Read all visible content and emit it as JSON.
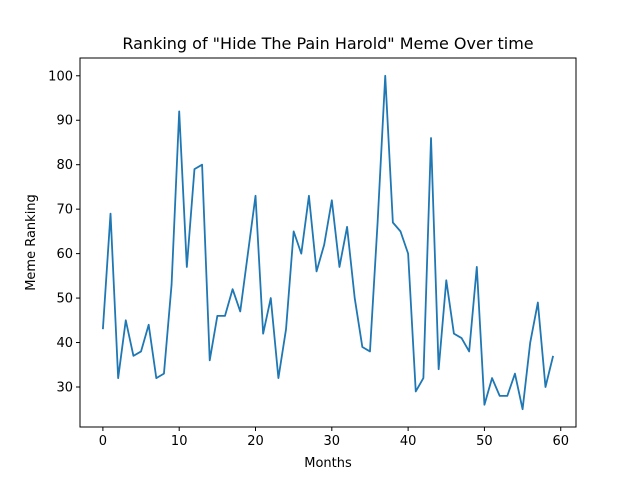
{
  "chart_data": {
    "type": "line",
    "title": "Ranking of \"Hide The Pain Harold\" Meme Over time",
    "xlabel": "Months",
    "ylabel": "Meme Ranking",
    "xlim": [
      -3,
      62
    ],
    "ylim": [
      21,
      104
    ],
    "xticks": [
      0,
      10,
      20,
      30,
      40,
      50,
      60
    ],
    "yticks": [
      30,
      40,
      50,
      60,
      70,
      80,
      90,
      100
    ],
    "grid": false,
    "line_color": "#1f77b4",
    "series": [
      {
        "x": [
          0,
          1,
          2,
          3,
          4,
          5,
          6,
          7,
          8,
          9,
          10,
          11,
          12,
          13,
          14,
          15,
          16,
          17,
          18,
          19,
          20,
          21,
          22,
          23,
          24,
          25,
          26,
          27,
          28,
          29,
          30,
          31,
          32,
          33,
          34,
          35,
          36,
          37,
          38,
          39,
          40,
          41,
          42,
          43,
          44,
          45,
          46,
          47,
          48,
          49,
          50,
          51,
          52,
          53,
          54,
          55,
          56,
          57,
          58,
          59
        ],
        "values": [
          43,
          69,
          32,
          45,
          37,
          38,
          44,
          32,
          33,
          53,
          92,
          57,
          79,
          80,
          36,
          46,
          46,
          52,
          47,
          60,
          73,
          42,
          50,
          32,
          43,
          65,
          60,
          73,
          56,
          62,
          72,
          57,
          66,
          50,
          39,
          38,
          67,
          100,
          67,
          65,
          60,
          29,
          32,
          86,
          34,
          54,
          42,
          41,
          38,
          57,
          26,
          32,
          28,
          28,
          33,
          25,
          40,
          49,
          30,
          37
        ]
      }
    ]
  }
}
